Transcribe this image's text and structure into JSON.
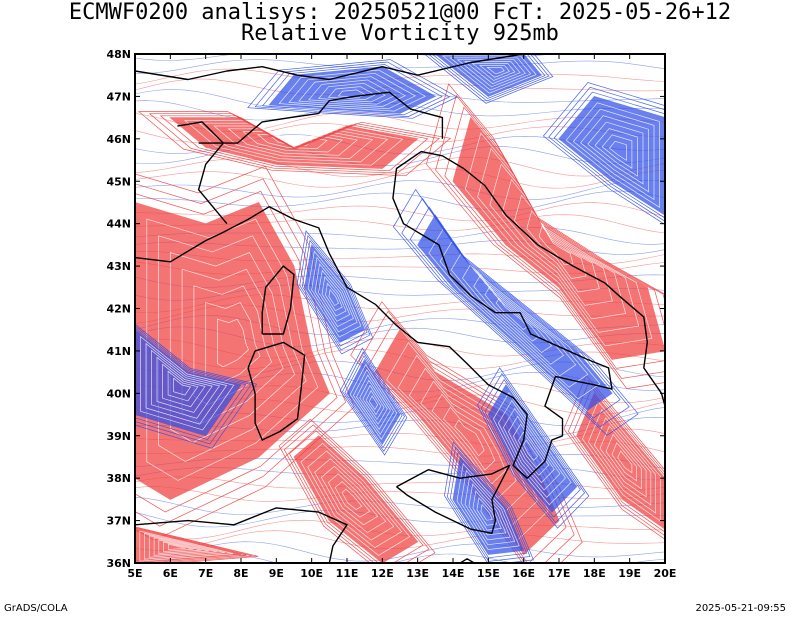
{
  "title": {
    "line1": "ECMWF0200 analisys: 20250521@00 FcT: 2025-05-26+12",
    "line2": "Relative Vorticity 925mb"
  },
  "map": {
    "lon_range": [
      5,
      20
    ],
    "lat_range": [
      36,
      48
    ],
    "lon_ticks": [
      "5E",
      "6E",
      "7E",
      "8E",
      "9E",
      "10E",
      "11E",
      "12E",
      "13E",
      "14E",
      "15E",
      "16E",
      "17E",
      "18E",
      "19E",
      "20E"
    ],
    "lat_ticks": [
      "36N",
      "37N",
      "38N",
      "39N",
      "40N",
      "41N",
      "42N",
      "43N",
      "44N",
      "45N",
      "46N",
      "47N",
      "48N"
    ],
    "positive_color": "#f04040",
    "negative_color": "#3050e8",
    "coastline_color": "#000000",
    "positive_bands": [
      [
        [
          5,
          44.5
        ],
        [
          7,
          44
        ],
        [
          8.5,
          44.5
        ],
        [
          9.5,
          43
        ],
        [
          10,
          41
        ],
        [
          10.5,
          40
        ],
        [
          8.5,
          38.5
        ],
        [
          6,
          37.5
        ],
        [
          5,
          38
        ]
      ],
      [
        [
          14.5,
          46.5
        ],
        [
          15.5,
          45.5
        ],
        [
          16.5,
          44
        ],
        [
          18,
          43.2
        ],
        [
          19.5,
          42.5
        ],
        [
          20,
          41
        ],
        [
          18.5,
          40.8
        ],
        [
          17,
          42.5
        ],
        [
          15.5,
          43.5
        ],
        [
          14,
          45
        ]
      ],
      [
        [
          12.5,
          41.5
        ],
        [
          13.5,
          40.5
        ],
        [
          15.5,
          39.5
        ],
        [
          16.5,
          38
        ],
        [
          17,
          37
        ],
        [
          16,
          36.2
        ],
        [
          14.5,
          38
        ],
        [
          13,
          39.5
        ],
        [
          11.8,
          40.5
        ]
      ],
      [
        [
          10.2,
          39
        ],
        [
          11.5,
          38
        ],
        [
          13,
          36.5
        ],
        [
          12,
          36
        ],
        [
          10.5,
          37
        ],
        [
          9.5,
          38.5
        ]
      ],
      [
        [
          18,
          40
        ],
        [
          19,
          39
        ],
        [
          20,
          38
        ],
        [
          20,
          36.8
        ],
        [
          18.8,
          37.5
        ],
        [
          17.5,
          39
        ]
      ],
      [
        [
          6,
          46.5
        ],
        [
          8,
          46.5
        ],
        [
          9.5,
          45.8
        ],
        [
          11,
          46.3
        ],
        [
          13,
          46
        ],
        [
          12,
          45.3
        ],
        [
          9,
          45.4
        ],
        [
          7,
          45.8
        ]
      ],
      [
        [
          5,
          36.8
        ],
        [
          6.5,
          36.5
        ],
        [
          8,
          36.2
        ],
        [
          5,
          36
        ]
      ]
    ],
    "negative_bands": [
      [
        [
          8.8,
          46.8
        ],
        [
          9.5,
          47.5
        ],
        [
          12,
          47.7
        ],
        [
          13.5,
          47
        ],
        [
          12.5,
          46.6
        ],
        [
          10.5,
          46.7
        ]
      ],
      [
        [
          10,
          43.5
        ],
        [
          11,
          42.5
        ],
        [
          11.5,
          41.5
        ],
        [
          10.8,
          41.2
        ],
        [
          9.8,
          42.5
        ]
      ],
      [
        [
          13.5,
          44.2
        ],
        [
          14.5,
          43
        ],
        [
          16,
          42
        ],
        [
          17.5,
          41
        ],
        [
          18.5,
          40
        ],
        [
          17.8,
          39.6
        ],
        [
          16,
          41
        ],
        [
          14,
          42.5
        ],
        [
          13,
          43.5
        ]
      ],
      [
        [
          15.5,
          40.2
        ],
        [
          16.5,
          39
        ],
        [
          17.5,
          37.8
        ],
        [
          16.8,
          37.2
        ],
        [
          15.8,
          38.2
        ],
        [
          15,
          39.5
        ]
      ],
      [
        [
          14.2,
          38.5
        ],
        [
          15.5,
          37.3
        ],
        [
          16,
          36.3
        ],
        [
          15,
          36.2
        ],
        [
          14,
          37.5
        ]
      ],
      [
        [
          17,
          46
        ],
        [
          18.5,
          45
        ],
        [
          20,
          44.2
        ],
        [
          20,
          46.5
        ],
        [
          18,
          47
        ]
      ],
      [
        [
          11.5,
          40.8
        ],
        [
          12.5,
          39.5
        ],
        [
          12,
          38.8
        ],
        [
          11,
          40
        ]
      ],
      [
        [
          5,
          41.5
        ],
        [
          6.5,
          40.5
        ],
        [
          8,
          40.2
        ],
        [
          7,
          39
        ],
        [
          5,
          39.5
        ]
      ],
      [
        [
          13.5,
          48
        ],
        [
          15,
          47
        ],
        [
          16.5,
          47.5
        ],
        [
          16,
          48
        ]
      ]
    ],
    "coastlines": [
      [
        [
          7.5,
          43.8
        ],
        [
          8.2,
          44.1
        ],
        [
          8.8,
          44.4
        ],
        [
          9.5,
          44.1
        ],
        [
          10.2,
          43.9
        ],
        [
          10.5,
          43.3
        ],
        [
          11.0,
          42.5
        ],
        [
          11.8,
          42.1
        ],
        [
          12.4,
          41.6
        ],
        [
          13.0,
          41.2
        ],
        [
          13.9,
          41.1
        ],
        [
          14.4,
          40.7
        ],
        [
          15.0,
          40.2
        ],
        [
          15.7,
          39.9
        ],
        [
          16.1,
          39.5
        ],
        [
          16.0,
          38.9
        ],
        [
          15.7,
          38.3
        ],
        [
          16.1,
          38.0
        ],
        [
          16.6,
          38.4
        ],
        [
          16.8,
          38.9
        ],
        [
          17.1,
          39.0
        ],
        [
          17.1,
          39.4
        ],
        [
          16.6,
          39.7
        ],
        [
          16.9,
          40.4
        ],
        [
          17.4,
          40.3
        ],
        [
          18.0,
          40.2
        ],
        [
          18.5,
          40.1
        ],
        [
          18.4,
          40.6
        ],
        [
          17.8,
          40.8
        ],
        [
          17.0,
          41.1
        ],
        [
          16.2,
          41.4
        ],
        [
          15.9,
          41.9
        ],
        [
          15.2,
          41.9
        ],
        [
          14.5,
          42.3
        ],
        [
          13.9,
          42.8
        ],
        [
          13.6,
          43.5
        ],
        [
          12.6,
          44.0
        ],
        [
          12.3,
          44.6
        ],
        [
          12.4,
          45.3
        ],
        [
          13.1,
          45.7
        ],
        [
          13.7,
          45.6
        ]
      ],
      [
        [
          12.4,
          37.8
        ],
        [
          13.3,
          38.2
        ],
        [
          14.2,
          38.0
        ],
        [
          15.1,
          38.1
        ],
        [
          15.6,
          38.3
        ],
        [
          15.1,
          37.5
        ],
        [
          15.2,
          37.0
        ],
        [
          15.1,
          36.7
        ],
        [
          14.5,
          36.8
        ],
        [
          13.5,
          37.2
        ],
        [
          12.7,
          37.6
        ],
        [
          12.4,
          37.8
        ]
      ],
      [
        [
          8.4,
          41.0
        ],
        [
          9.2,
          41.2
        ],
        [
          9.8,
          40.9
        ],
        [
          9.7,
          40.1
        ],
        [
          9.6,
          39.4
        ],
        [
          9.1,
          39.1
        ],
        [
          8.6,
          38.9
        ],
        [
          8.4,
          39.3
        ],
        [
          8.4,
          40.0
        ],
        [
          8.2,
          40.6
        ],
        [
          8.4,
          41.0
        ]
      ],
      [
        [
          8.6,
          41.4
        ],
        [
          9.2,
          41.4
        ],
        [
          9.4,
          42.0
        ],
        [
          9.5,
          42.8
        ],
        [
          9.2,
          43.0
        ],
        [
          8.7,
          42.5
        ],
        [
          8.6,
          41.9
        ],
        [
          8.6,
          41.4
        ]
      ],
      [
        [
          5.0,
          43.2
        ],
        [
          6.0,
          43.1
        ],
        [
          7.0,
          43.6
        ],
        [
          7.5,
          43.8
        ]
      ],
      [
        [
          13.7,
          45.6
        ],
        [
          14.3,
          45.3
        ],
        [
          14.9,
          44.9
        ],
        [
          15.5,
          44.2
        ],
        [
          16.4,
          43.5
        ],
        [
          17.4,
          43.0
        ],
        [
          18.3,
          42.6
        ],
        [
          18.7,
          42.3
        ],
        [
          19.4,
          41.8
        ],
        [
          19.5,
          41.2
        ],
        [
          19.4,
          40.6
        ],
        [
          19.9,
          40.0
        ],
        [
          20.0,
          39.7
        ]
      ],
      [
        [
          5.0,
          36.9
        ],
        [
          6.5,
          37.0
        ],
        [
          7.8,
          36.9
        ],
        [
          9.0,
          37.3
        ],
        [
          10.2,
          37.2
        ],
        [
          11.0,
          36.9
        ],
        [
          10.6,
          36.4
        ],
        [
          10.5,
          36.0
        ]
      ],
      [
        [
          14.4,
          35.9
        ],
        [
          14.6,
          36.0
        ],
        [
          14.4,
          36.1
        ],
        [
          14.2,
          36.0
        ],
        [
          14.4,
          35.9
        ]
      ],
      [
        [
          6.8,
          45.9
        ],
        [
          7.9,
          45.9
        ],
        [
          8.6,
          46.4
        ],
        [
          9.4,
          46.5
        ],
        [
          10.2,
          46.6
        ],
        [
          10.5,
          46.9
        ],
        [
          11.2,
          47.0
        ],
        [
          12.2,
          47.1
        ],
        [
          12.8,
          46.7
        ],
        [
          13.7,
          46.5
        ],
        [
          13.7,
          46.0
        ]
      ],
      [
        [
          6.2,
          46.3
        ],
        [
          6.9,
          46.4
        ],
        [
          7.5,
          45.9
        ],
        [
          7.0,
          45.4
        ],
        [
          6.8,
          44.8
        ],
        [
          7.3,
          44.3
        ],
        [
          7.6,
          44.0
        ]
      ],
      [
        [
          5.0,
          47.6
        ],
        [
          6.5,
          47.4
        ],
        [
          7.6,
          47.6
        ],
        [
          8.6,
          47.7
        ],
        [
          9.6,
          47.5
        ],
        [
          10.5,
          47.4
        ],
        [
          12.0,
          47.7
        ],
        [
          13.0,
          47.5
        ],
        [
          14.5,
          47.8
        ],
        [
          16.0,
          48.0
        ]
      ]
    ]
  },
  "footer": {
    "left": "GrADS/COLA",
    "right": "2025-05-21-09:55"
  }
}
